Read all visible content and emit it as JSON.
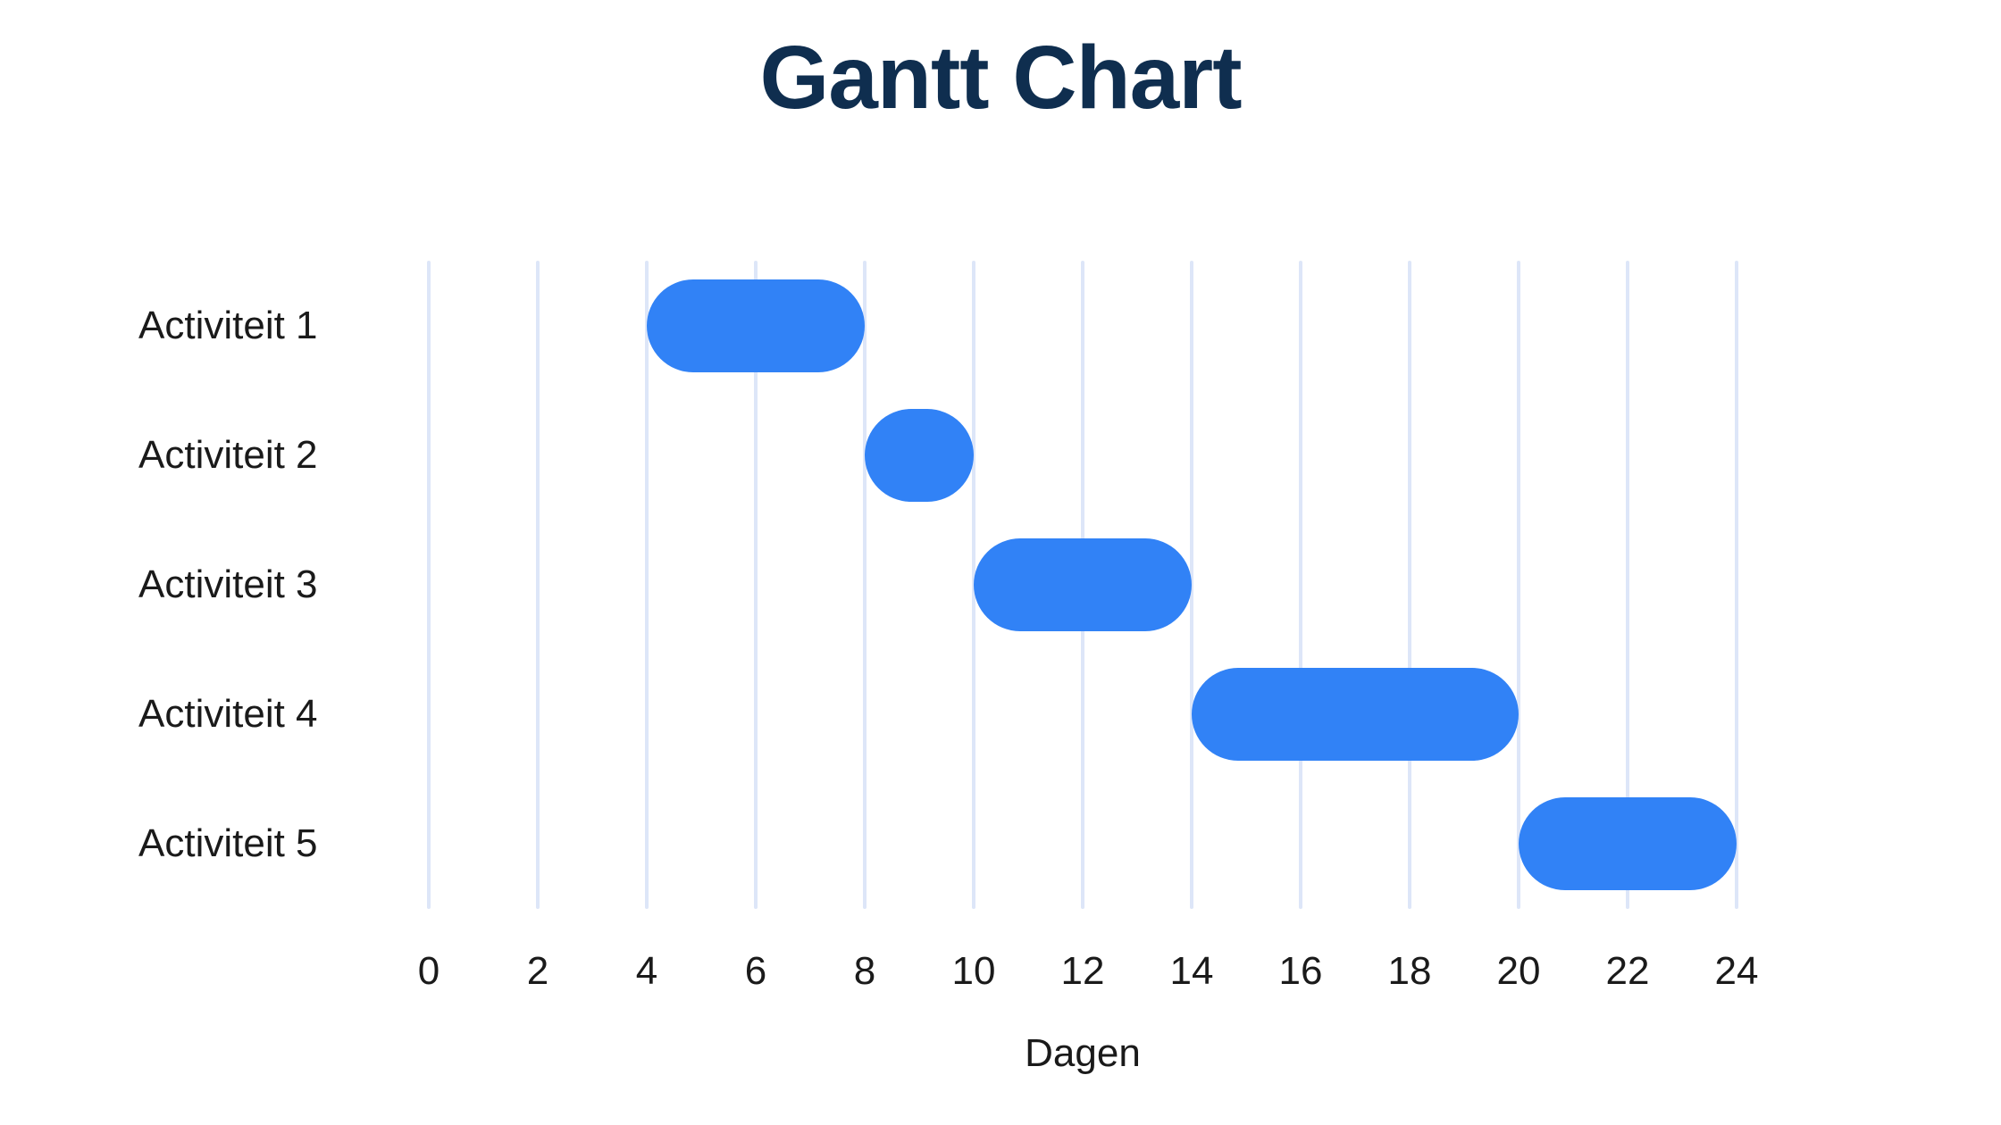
{
  "chart_data": {
    "type": "bar",
    "variant": "gantt",
    "title": "Gantt Chart",
    "xlabel": "Dagen",
    "xlim": [
      0,
      24
    ],
    "x_ticks": [
      0,
      2,
      4,
      6,
      8,
      10,
      12,
      14,
      16,
      18,
      20,
      22,
      24
    ],
    "grid": "vertical",
    "legend": "none",
    "categories": [
      "Activiteit 1",
      "Activiteit 2",
      "Activiteit 3",
      "Activiteit 4",
      "Activiteit 5"
    ],
    "tasks": [
      {
        "label": "Activiteit 1",
        "start": 4,
        "end": 8,
        "duration": 4
      },
      {
        "label": "Activiteit 2",
        "start": 8,
        "end": 10,
        "duration": 2
      },
      {
        "label": "Activiteit 3",
        "start": 10,
        "end": 14,
        "duration": 4
      },
      {
        "label": "Activiteit 4",
        "start": 14,
        "end": 20,
        "duration": 6
      },
      {
        "label": "Activiteit 5",
        "start": 20,
        "end": 24,
        "duration": 4
      }
    ],
    "colors": {
      "bar": "#3182f6",
      "gridline": "#dde6f8",
      "title": "#0f2e4f",
      "text": "#1a1a1a",
      "background": "#ffffff"
    }
  }
}
